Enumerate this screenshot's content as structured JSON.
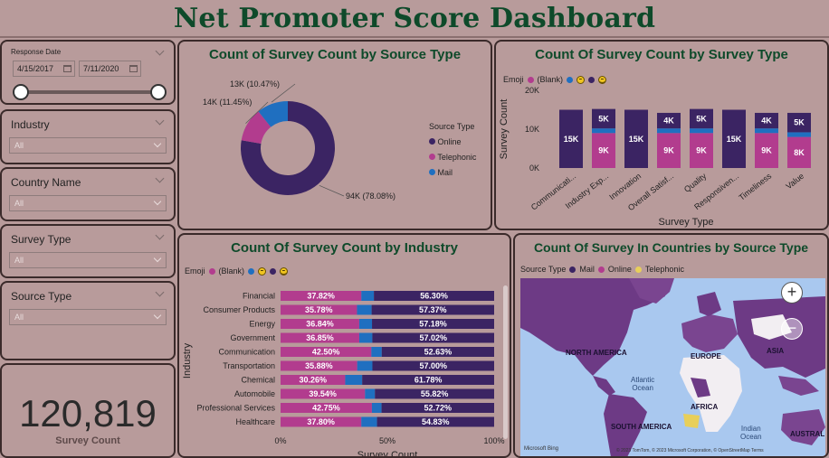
{
  "title": "Net Promoter Score Dashboard",
  "filters": {
    "response_date": {
      "title": "Response Date",
      "start": "4/15/2017",
      "end": "7/11/2020",
      "range_start_fraction": 0.0,
      "range_end_fraction": 1.0
    },
    "industry": {
      "title": "Industry",
      "value": "All"
    },
    "country": {
      "title": "Country Name",
      "value": "All"
    },
    "survey_type": {
      "title": "Survey Type",
      "value": "All"
    },
    "source_type": {
      "title": "Source Type",
      "value": "All"
    }
  },
  "kpi": {
    "value": "120,819",
    "label": "Survey Count"
  },
  "colors": {
    "online": "#3b2463",
    "telephonic": "#b23c8e",
    "mail": "#1f6fc0",
    "blank": "#b23c8e",
    "neutral": "#1f6fc0",
    "promoter": "#3b2463",
    "telephonic_map": "#e8cf5a"
  },
  "donut": {
    "title": "Count of Survey Count by Source Type",
    "legend_title": "Source Type",
    "chart_data": {
      "type": "pie",
      "categories": [
        "Online",
        "Telephonic",
        "Mail"
      ],
      "values": [
        94,
        14,
        13
      ],
      "labels": [
        "94K (78.08%)",
        "14K (11.45%)",
        "13K (10.47%)"
      ]
    }
  },
  "survey_type_chart": {
    "title": "Count Of Survey Count by Survey Type",
    "legend_title": "Emoji",
    "legend_blank": "(Blank)",
    "chart_data": {
      "type": "bar",
      "categories": [
        "Communicati...",
        "Industry Exp...",
        "Innovation",
        "Overall Satisf...",
        "Quality",
        "Responsiven...",
        "Timeliness",
        "Value"
      ],
      "series": [
        {
          "name": "(Blank)",
          "values": [
            0,
            9,
            0,
            9,
            9,
            0,
            9,
            8
          ],
          "labels": [
            "",
            "9K",
            "",
            "9K",
            "9K",
            "",
            "9K",
            "8K"
          ]
        },
        {
          "name": "neutral",
          "values": [
            0,
            1.2,
            0,
            1.2,
            1.2,
            0,
            1.2,
            1.2
          ],
          "labels": [
            "",
            "",
            "",
            "",
            "",
            "",
            "",
            ""
          ]
        },
        {
          "name": "promoter",
          "values": [
            15,
            5,
            15,
            4,
            5,
            15,
            4,
            5
          ],
          "labels": [
            "15K",
            "5K",
            "15K",
            "4K",
            "5K",
            "15K",
            "4K",
            "5K"
          ]
        }
      ],
      "xlabel": "Survey Type",
      "ylabel": "Survey Count",
      "yticks": [
        "0K",
        "10K",
        "20K"
      ],
      "ylim": [
        0,
        20
      ]
    }
  },
  "industry_chart": {
    "title": "Count Of Survey Count by Industry",
    "legend_title": "Emoji",
    "legend_blank": "(Blank)",
    "chart_data": {
      "type": "bar",
      "orientation": "horizontal-stacked-100",
      "categories": [
        "Financial",
        "Consumer Products",
        "Energy",
        "Government",
        "Communication",
        "Transportation",
        "Chemical",
        "Automobile",
        "Professional Services",
        "Healthcare"
      ],
      "series": [
        {
          "name": "(Blank)",
          "values": [
            37.82,
            35.78,
            36.84,
            36.85,
            42.5,
            35.88,
            30.26,
            39.54,
            42.75,
            37.8
          ],
          "labels": [
            "37.82%",
            "35.78%",
            "36.84%",
            "36.85%",
            "42.50%",
            "35.88%",
            "30.26%",
            "39.54%",
            "42.75%",
            "37.80%"
          ]
        },
        {
          "name": "neutral",
          "values": [
            5.88,
            6.85,
            5.98,
            6.13,
            4.87,
            7.12,
            7.96,
            4.64,
            4.53,
            7.36
          ]
        },
        {
          "name": "promoter",
          "values": [
            56.3,
            57.37,
            57.18,
            57.02,
            52.63,
            57.0,
            61.78,
            55.82,
            52.72,
            54.83
          ],
          "labels": [
            "56.30%",
            "57.37%",
            "57.18%",
            "57.02%",
            "52.63%",
            "57.00%",
            "61.78%",
            "55.82%",
            "52.72%",
            "54.83%"
          ]
        }
      ],
      "xlabel": "Survey Count",
      "ylabel": "Industry",
      "xticks": [
        "0%",
        "50%",
        "100%"
      ]
    }
  },
  "map_chart": {
    "title": "Count Of Survey In Countries by Source Type",
    "legend_title": "Source Type",
    "legend_items": [
      "Mail",
      "Online",
      "Telephonic"
    ],
    "labels": {
      "north_america": "NORTH AMERICA",
      "europe": "EUROPE",
      "asia": "ASIA",
      "africa": "AFRICA",
      "south_america": "SOUTH AMERICA",
      "austral": "AUSTRAL",
      "atlantic": "Atlantic\nOcean",
      "indian": "Indian\nOcean"
    },
    "attribution": "© 2023 TomTom, © 2023 Microsoft Corporation, © OpenStreetMap  Terms",
    "bing": "Microsoft Bing",
    "zoom_in": "+",
    "zoom_out": "−"
  }
}
